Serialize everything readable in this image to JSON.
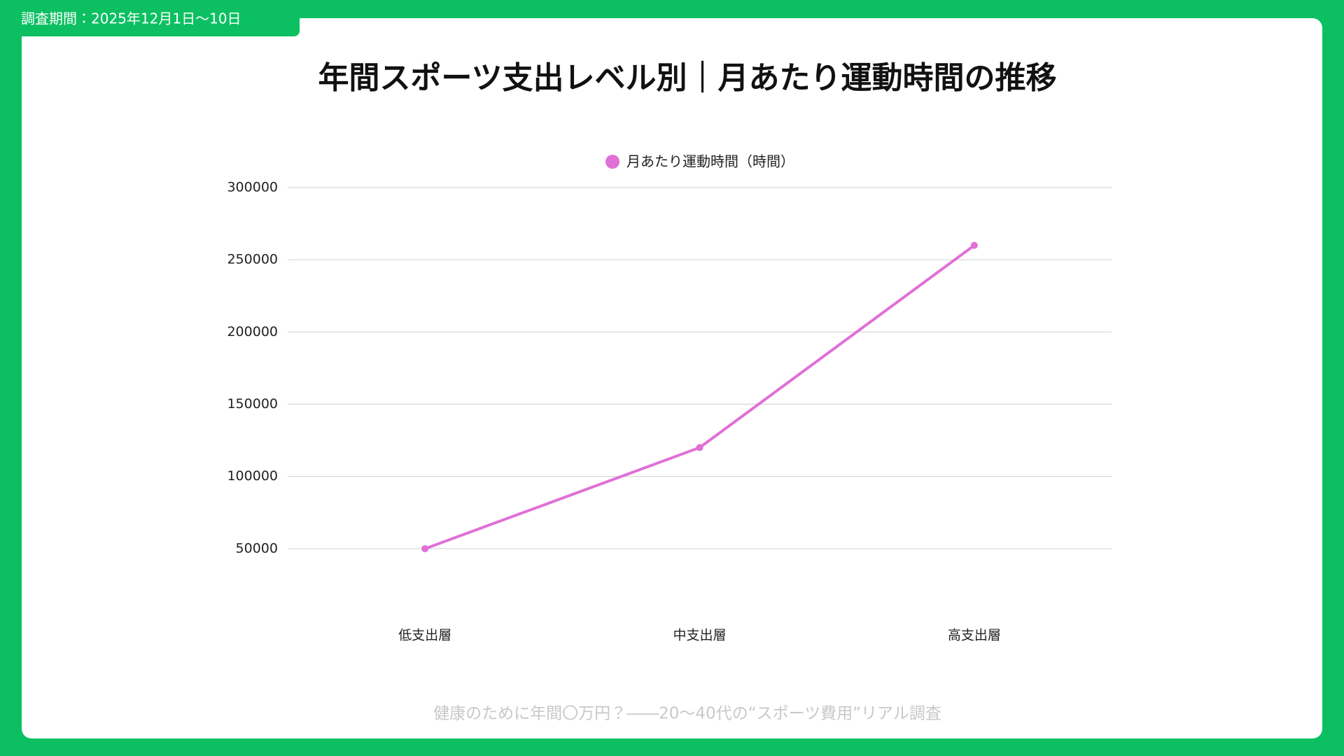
{
  "period_label": "調査期間：2025年12月1日〜10日",
  "chart_data": {
    "type": "line",
    "title": "年間スポーツ支出レベル別｜月あたり運動時間の推移",
    "categories": [
      "低支出層",
      "中支出層",
      "高支出層"
    ],
    "series": [
      {
        "name": "月あたり運動時間（時間）",
        "color": "#e070d6",
        "values": [
          50000,
          120000,
          260000
        ]
      }
    ],
    "ylim": [
      0,
      300000
    ],
    "yticks": [
      50000,
      100000,
      150000,
      200000,
      250000,
      300000
    ],
    "grid": true,
    "legend": "top"
  },
  "footer": "健康のために年間〇万円？――20〜40代の“スポーツ費用”リアル調査"
}
